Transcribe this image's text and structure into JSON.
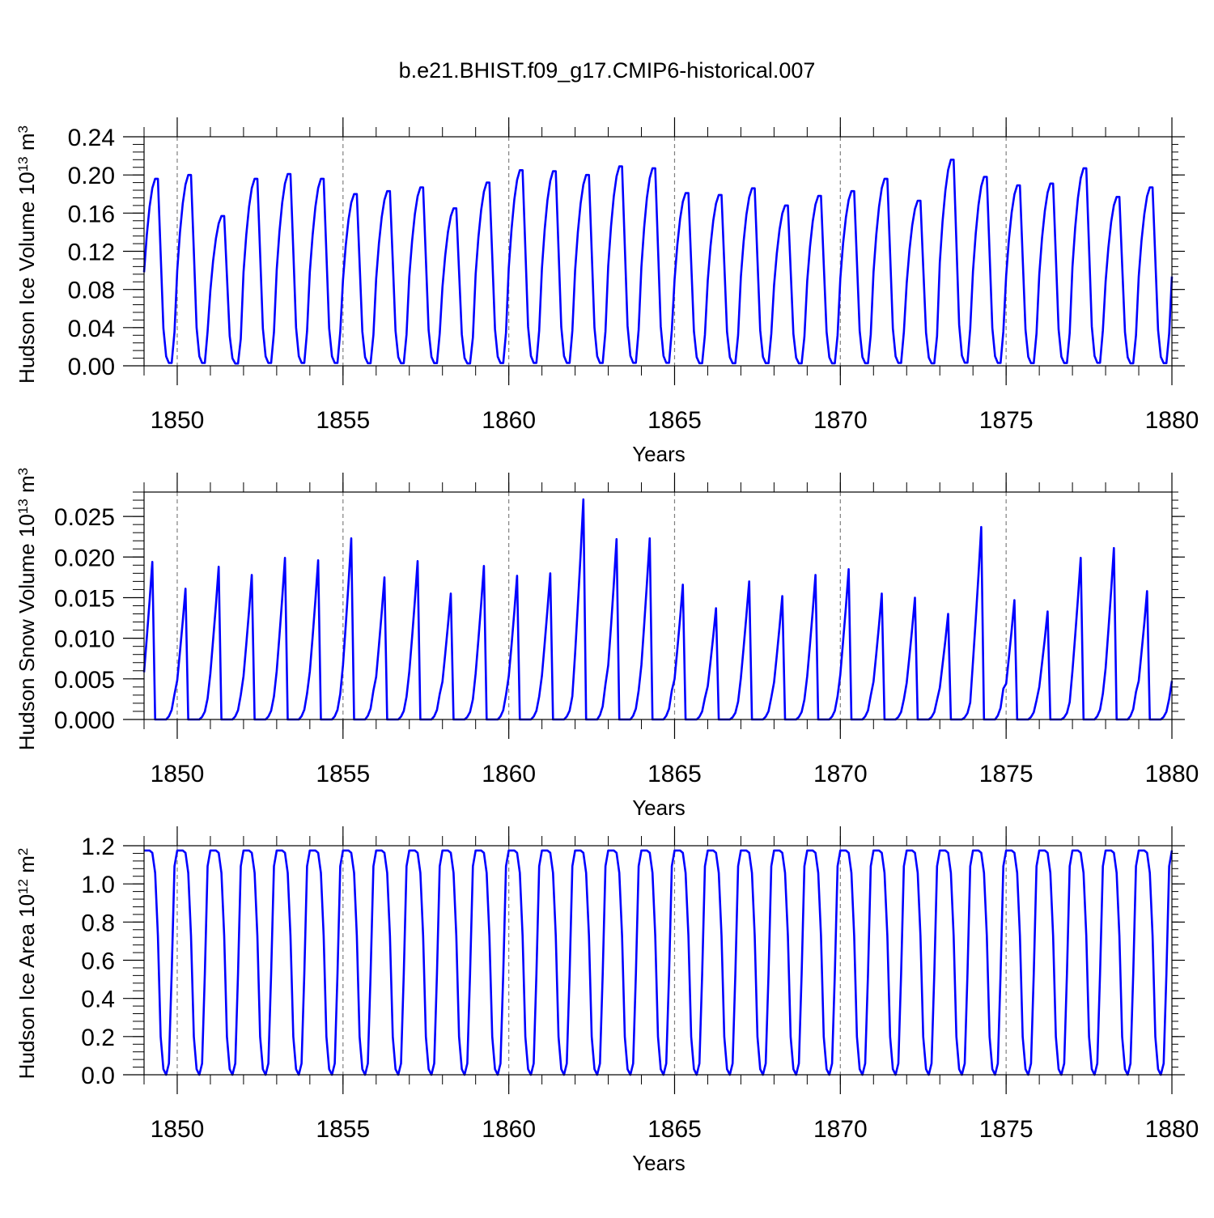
{
  "figure_title": "b.e21.BHIST.f09_g17.CMIP6-historical.007",
  "colors": {
    "series": "#0000ff",
    "axis": "#000000",
    "refline": "#808080"
  },
  "chart_data": [
    {
      "type": "line",
      "name": "ice-volume",
      "ylabel": "Hudson Ice Volume 10",
      "ylabel_exp": "13",
      "ylabel_unit": " m",
      "ylabel_unit_exp": "3",
      "xlabel": "Years",
      "xlim": [
        1849,
        1880
      ],
      "ylim": [
        0,
        0.24
      ],
      "yticks": [
        "0.00",
        "0.04",
        "0.08",
        "0.12",
        "0.16",
        "0.20",
        "0.24"
      ],
      "xticks": [
        "1850",
        "1855",
        "1860",
        "1865",
        "1870",
        "1875",
        "1880"
      ],
      "seasonal_shape": [
        0.5,
        0.7,
        0.85,
        0.95,
        1.0,
        1.0,
        0.6,
        0.2,
        0.05,
        0.015,
        0.015,
        0.18
      ],
      "annual_max": [
        0.196,
        0.2,
        0.157,
        0.196,
        0.201,
        0.196,
        0.18,
        0.183,
        0.187,
        0.165,
        0.192,
        0.205,
        0.204,
        0.2,
        0.209,
        0.207,
        0.181,
        0.179,
        0.186,
        0.168,
        0.178,
        0.183,
        0.196,
        0.173,
        0.216,
        0.198,
        0.189,
        0.191,
        0.207,
        0.177,
        0.187
      ],
      "series_name": "Ice volume"
    },
    {
      "type": "line",
      "name": "snow-volume",
      "ylabel": "Hudson Snow Volume 10",
      "ylabel_exp": "13",
      "ylabel_unit": " m",
      "ylabel_unit_exp": "3",
      "xlabel": "Years",
      "xlim": [
        1849,
        1880
      ],
      "ylim": [
        0,
        0.028
      ],
      "yticks": [
        "0.000",
        "0.005",
        "0.010",
        "0.015",
        "0.020",
        "0.025"
      ],
      "xticks": [
        "1850",
        "1855",
        "1860",
        "1865",
        "1870",
        "1875",
        "1880"
      ],
      "seasonal_shape": [
        0.3,
        0.52,
        0.75,
        1.0,
        0.0,
        0.0,
        0.0,
        0.0,
        0.0,
        0.02,
        0.06,
        0.16
      ],
      "annual_max": [
        0.0194,
        0.0161,
        0.0188,
        0.0178,
        0.0199,
        0.0196,
        0.0223,
        0.0175,
        0.0195,
        0.0155,
        0.0189,
        0.0177,
        0.018,
        0.0271,
        0.0222,
        0.0223,
        0.0166,
        0.0137,
        0.017,
        0.0152,
        0.0178,
        0.0185,
        0.0155,
        0.015,
        0.013,
        0.0237,
        0.0147,
        0.0133,
        0.0199,
        0.0211,
        0.0158
      ],
      "series_name": "Snow volume"
    },
    {
      "type": "line",
      "name": "ice-area",
      "ylabel": "Hudson Ice Area 10",
      "ylabel_exp": "12",
      "ylabel_unit": " m",
      "ylabel_unit_exp": "2",
      "xlabel": "Years",
      "xlim": [
        1849,
        1880
      ],
      "ylim": [
        0,
        1.2
      ],
      "yticks": [
        "0.0",
        "0.2",
        "0.4",
        "0.6",
        "0.8",
        "1.0",
        "1.2"
      ],
      "xticks": [
        "1850",
        "1855",
        "1860",
        "1865",
        "1870",
        "1875",
        "1880"
      ],
      "seasonal_shape": [
        1.0,
        1.0,
        1.0,
        0.99,
        0.9,
        0.62,
        0.17,
        0.025,
        0.0,
        0.05,
        0.45,
        0.93
      ],
      "annual_max": [
        1.175,
        1.175,
        1.175,
        1.175,
        1.175,
        1.175,
        1.175,
        1.175,
        1.175,
        1.175,
        1.175,
        1.175,
        1.175,
        1.175,
        1.175,
        1.175,
        1.175,
        1.175,
        1.175,
        1.175,
        1.175,
        1.175,
        1.175,
        1.175,
        1.175,
        1.175,
        1.175,
        1.175,
        1.175,
        1.175,
        1.175
      ],
      "series_name": "Ice area"
    }
  ]
}
